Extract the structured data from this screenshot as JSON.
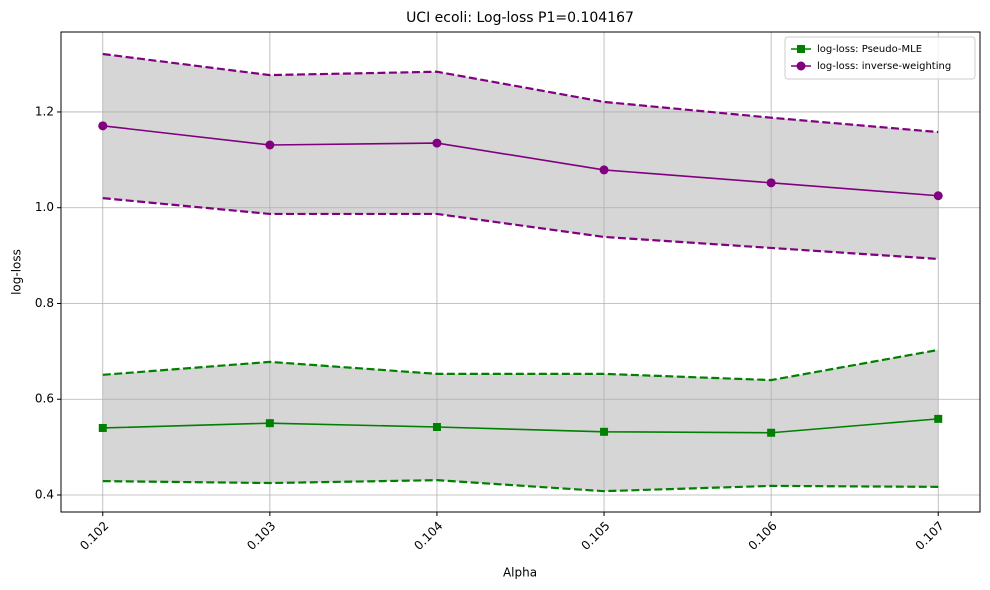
{
  "chart_data": {
    "type": "line",
    "title": "UCI ecoli: Log-loss P1=0.104167",
    "x_label": "Alpha",
    "y_label": "log-loss",
    "x": [
      0.102,
      0.103,
      0.104,
      0.105,
      0.106,
      0.107
    ],
    "series": [
      {
        "name": "log-loss: Pseudo-MLE",
        "color": "#008000",
        "marker": "square",
        "values": [
          0.54,
          0.55,
          0.542,
          0.532,
          0.53,
          0.559
        ],
        "upper": [
          0.651,
          0.678,
          0.653,
          0.653,
          0.64,
          0.703
        ],
        "lower": [
          0.429,
          0.425,
          0.431,
          0.408,
          0.419,
          0.417
        ]
      },
      {
        "name": "log-loss: inverse-weighting",
        "color": "#800080",
        "marker": "circle",
        "values": [
          1.171,
          1.131,
          1.135,
          1.079,
          1.052,
          1.025
        ],
        "upper": [
          1.321,
          1.277,
          1.284,
          1.221,
          1.188,
          1.158
        ],
        "lower": [
          1.02,
          0.987,
          0.987,
          0.939,
          0.916,
          0.893
        ]
      }
    ],
    "xlim": [
      0.10175,
      0.10725
    ],
    "xticks": [
      0.102,
      0.103,
      0.104,
      0.105,
      0.106,
      0.107
    ],
    "ylim": [
      0.3645,
      1.367
    ],
    "yticks": [
      0.4,
      0.6,
      0.8,
      {
        "value": 1,
        "label": "1.0"
      },
      1.2
    ],
    "grid": true,
    "legend": "upper right",
    "band_color": "#000000"
  }
}
